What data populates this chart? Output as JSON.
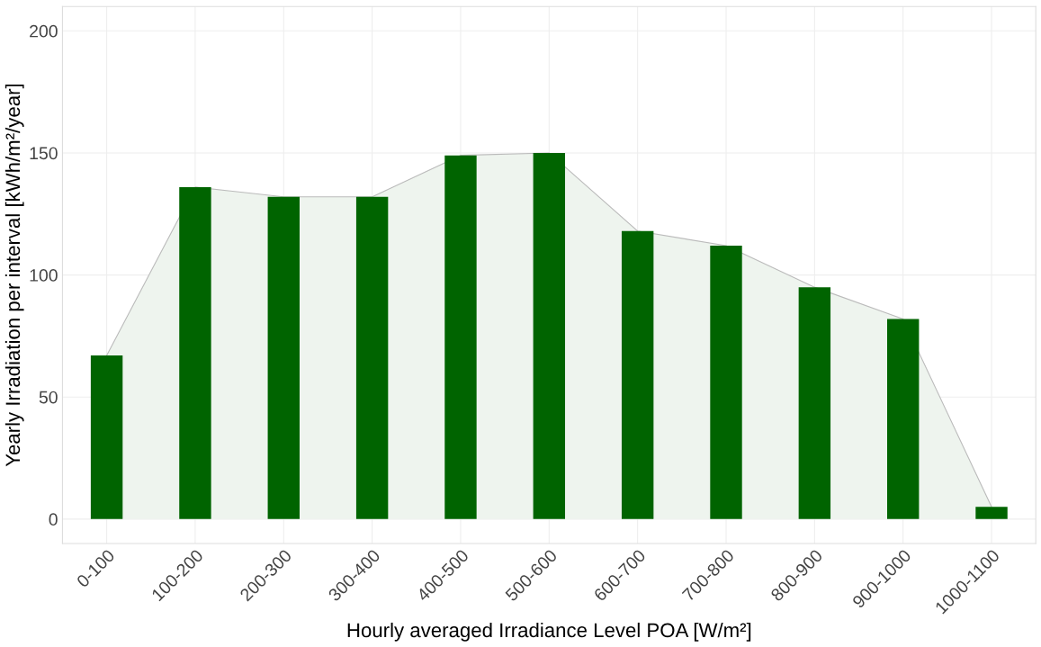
{
  "chart_data": {
    "type": "bar",
    "xlabel": "Hourly averaged Irradiance Level POA [W/m²]",
    "ylabel": "Yearly Irradiation per interval [kWh/m²/year]",
    "categories": [
      "0-100",
      "100-200",
      "200-300",
      "300-400",
      "400-500",
      "500-600",
      "600-700",
      "700-800",
      "800-900",
      "900-1000",
      "1000-1100"
    ],
    "series": [
      {
        "type": "area",
        "color": "#eef4ee",
        "values": [
          67,
          136,
          132,
          132,
          149,
          150,
          118,
          112,
          95,
          82,
          5
        ]
      },
      {
        "color": "#006400",
        "values": [
          67,
          136,
          132,
          132,
          149,
          150,
          118,
          112,
          95,
          82,
          5
        ]
      }
    ],
    "ylim": [
      -10,
      210
    ],
    "yticks": [
      0,
      50,
      100,
      150,
      200
    ],
    "grid": true,
    "legend": false
  }
}
